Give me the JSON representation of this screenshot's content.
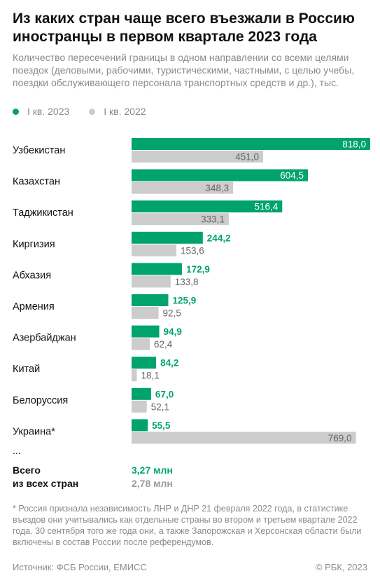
{
  "colors": {
    "series_2023": "#00a36c",
    "series_2022": "#cccccc",
    "label_inside": "#ffffff",
    "label_2022": "#666666",
    "total_2022": "#9a9a9a"
  },
  "header": {
    "title": "Из каких стран чаще всего въезжали в Россию иностранцы в первом квартале 2023 года",
    "subtitle": "Количество пересечений границы в одном направлении со всеми целями поездок (деловыми, рабочими, туристическими, частными, с целью учебы, поездки обслуживающего персонала транспортных средств и др.), тыс."
  },
  "legend": {
    "items": [
      {
        "label": "I кв. 2023",
        "color": "#00a36c"
      },
      {
        "label": "I кв. 2022",
        "color": "#cccccc"
      }
    ]
  },
  "chart_data": {
    "type": "bar",
    "orientation": "horizontal",
    "categories": [
      "Узбекистан",
      "Казахстан",
      "Таджикистан",
      "Киргизия",
      "Абхазия",
      "Армения",
      "Азербайджан",
      "Китай",
      "Белоруссия",
      "Украина*"
    ],
    "series": [
      {
        "name": "I кв. 2023",
        "values": [
          818.0,
          604.5,
          516.4,
          244.2,
          172.9,
          125.9,
          94.9,
          84.2,
          67.0,
          55.5
        ],
        "labels": [
          "818,0",
          "604,5",
          "516,4",
          "244,2",
          "172,9",
          "125,9",
          "94,9",
          "84,2",
          "67,0",
          "55,5"
        ]
      },
      {
        "name": "I кв. 2022",
        "values": [
          451.0,
          348.3,
          333.1,
          153.6,
          133.8,
          92.5,
          62.4,
          18.1,
          52.1,
          769.0
        ],
        "labels": [
          "451,0",
          "348,3",
          "333,1",
          "153,6",
          "133,8",
          "92,5",
          "62,4",
          "18,1",
          "52,1",
          "769,0"
        ]
      }
    ],
    "ellipsis": "...",
    "xlim": [
      0,
      818
    ],
    "grid": false,
    "legend_position": "top-left"
  },
  "totals": {
    "label": "Всего\nиз всех стран",
    "value_2023": "3,27 млн",
    "value_2022": "2,78 млн"
  },
  "footnote": "* Россия признала независимость ЛНР и ДНР 21 февраля 2022 года, в статистике въездов они учитывались как отдельные страны во втором и третьем квартале 2022 года. 30 сентября того же года они, а также Запорожская и Херсонская области были включены в состав России после референдумов.",
  "footer": {
    "source": "Источник: ФСБ России, ЕМИСС",
    "copyright": "© РБК, 2023"
  }
}
